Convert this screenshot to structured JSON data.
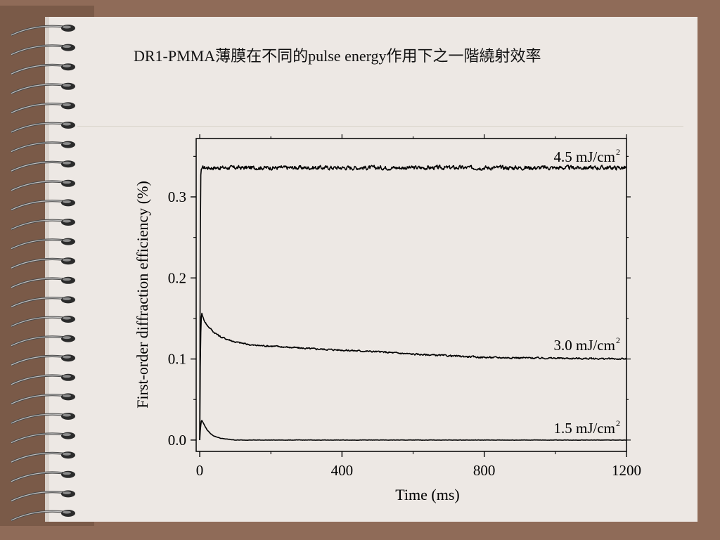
{
  "slide": {
    "title": "DR1-PMMA薄膜在不同的pulse energy作用下之一階繞射效率"
  },
  "chart_data": {
    "type": "line",
    "title": "",
    "xlabel": "Time (ms)",
    "ylabel": "First-order diffraction efficiency (%)",
    "xlim": [
      -10,
      1200
    ],
    "ylim": [
      -0.014,
      0.372
    ],
    "x_ticks": [
      0,
      400,
      800,
      1200
    ],
    "y_ticks": [
      0.0,
      0.1,
      0.2,
      0.3
    ],
    "x_tick_labels": [
      "0",
      "400",
      "800",
      "1200"
    ],
    "y_tick_labels": [
      "0.0",
      "0.1",
      "0.2",
      "0.3"
    ],
    "grid": false,
    "series": [
      {
        "name": "4.5 mJ/cm2",
        "label_main": "4.5 mJ/cm",
        "label_sup": "2",
        "x": [
          0,
          2,
          4,
          10,
          50,
          100,
          200,
          300,
          400,
          500,
          600,
          700,
          800,
          900,
          1000,
          1100,
          1200
        ],
        "y": [
          0.0,
          0.32,
          0.334,
          0.336,
          0.336,
          0.336,
          0.336,
          0.336,
          0.336,
          0.336,
          0.336,
          0.336,
          0.336,
          0.336,
          0.336,
          0.336,
          0.336
        ]
      },
      {
        "name": "3.0 mJ/cm2",
        "label_main": "3.0 mJ/cm",
        "label_sup": "2",
        "x": [
          0,
          2,
          5,
          10,
          20,
          40,
          60,
          100,
          150,
          200,
          300,
          400,
          500,
          600,
          700,
          800,
          900,
          1000,
          1100,
          1200
        ],
        "y": [
          0.0,
          0.12,
          0.158,
          0.15,
          0.142,
          0.133,
          0.127,
          0.121,
          0.117,
          0.116,
          0.113,
          0.111,
          0.109,
          0.106,
          0.104,
          0.102,
          0.1015,
          0.101,
          0.1005,
          0.1
        ]
      },
      {
        "name": "1.5 mJ/cm2",
        "label_main": "1.5 mJ/cm",
        "label_sup": "2",
        "x": [
          0,
          2,
          5,
          10,
          20,
          30,
          40,
          60,
          80,
          100,
          150,
          200,
          400,
          800,
          1200
        ],
        "y": [
          0.0,
          0.015,
          0.025,
          0.021,
          0.013,
          0.008,
          0.005,
          0.002,
          0.001,
          0.0,
          0.0,
          0.0,
          0.0,
          0.0,
          0.0
        ]
      }
    ]
  }
}
